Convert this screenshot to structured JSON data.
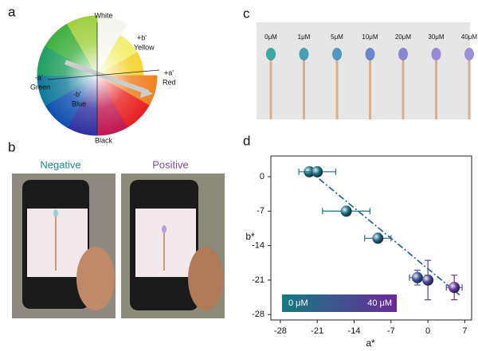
{
  "panel_letters": [
    "a",
    "b",
    "c",
    "d"
  ],
  "panel_a": {
    "labels": [
      "White",
      "+b'",
      "Yellow",
      "-a'",
      "Green",
      "+a'",
      "Red",
      "-b'",
      "Blue",
      "Black"
    ]
  },
  "panel_b": {
    "labels": [
      "Negative",
      "Positive"
    ]
  },
  "panel_c": {
    "labels": [
      "0μM",
      "1μM",
      "5μM",
      "10μM",
      "20μM",
      "30μM",
      "40μM"
    ]
  },
  "chart_data": {
    "type": "scatter",
    "x_label": "a*",
    "y_label": "b*",
    "x": [
      -22.5,
      -21,
      -15.5,
      -9.5,
      -2,
      0,
      5
    ],
    "values": [
      1,
      1,
      -7,
      -12.5,
      -20.5,
      -21,
      -22.5
    ],
    "x_errors": [
      null,
      3.5,
      4.5,
      2.5,
      1.5,
      null,
      1.5
    ],
    "y_errors": [
      null,
      null,
      null,
      null,
      1.5,
      4,
      2.5
    ],
    "colors": [
      "#1d7480",
      "#1d7480",
      "#1f7282",
      "#2a6a8a",
      "#3f5a98",
      "#52489c",
      "#6a3a9c"
    ],
    "fit": {
      "x": [
        -22.5,
        6
      ],
      "y": [
        1.2,
        -24
      ]
    },
    "colorbar": {
      "labels": [
        "0 μM",
        "40 μM"
      ],
      "colors": [
        "#157a80",
        "#6a2a9a"
      ]
    },
    "xlim": [
      -29.8,
      8.3
    ],
    "ylim": [
      -29.1,
      4.2
    ],
    "xticks": [
      -28,
      -21,
      -14,
      -7,
      0,
      7
    ],
    "yticks": [
      0,
      -7,
      -14,
      -21,
      -28
    ]
  }
}
